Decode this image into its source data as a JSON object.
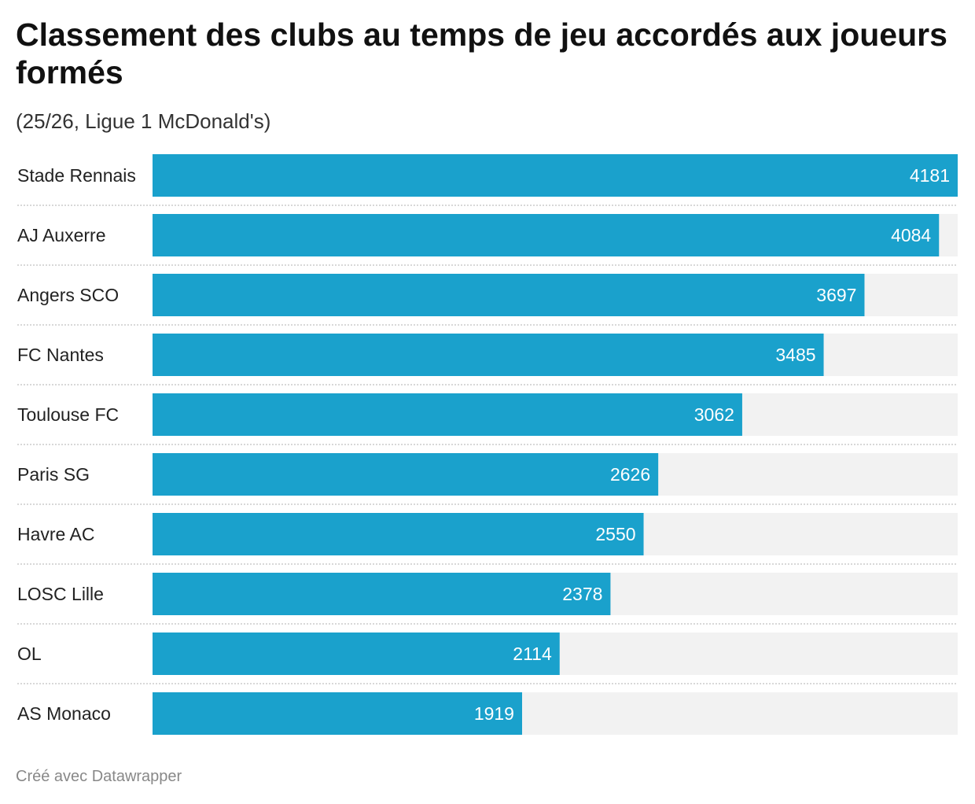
{
  "chart_data": {
    "type": "bar",
    "orientation": "horizontal",
    "title": "Classement des clubs au temps de jeu accordés aux joueurs formés",
    "subtitle": "(25/26, Ligue 1 McDonald's)",
    "categories": [
      "Stade Rennais",
      "AJ Auxerre",
      "Angers SCO",
      "FC Nantes",
      "Toulouse FC",
      "Paris SG",
      "Havre AC",
      "LOSC Lille",
      "OL",
      "AS Monaco"
    ],
    "values": [
      4181,
      4084,
      3697,
      3485,
      3062,
      2626,
      2550,
      2378,
      2114,
      1919
    ],
    "xlim": [
      0,
      4181
    ],
    "bar_color": "#1aa1cc",
    "track_color": "#f2f2f2",
    "value_label_color": "#ffffff",
    "grid": false
  },
  "footer": "Créé avec Datawrapper"
}
